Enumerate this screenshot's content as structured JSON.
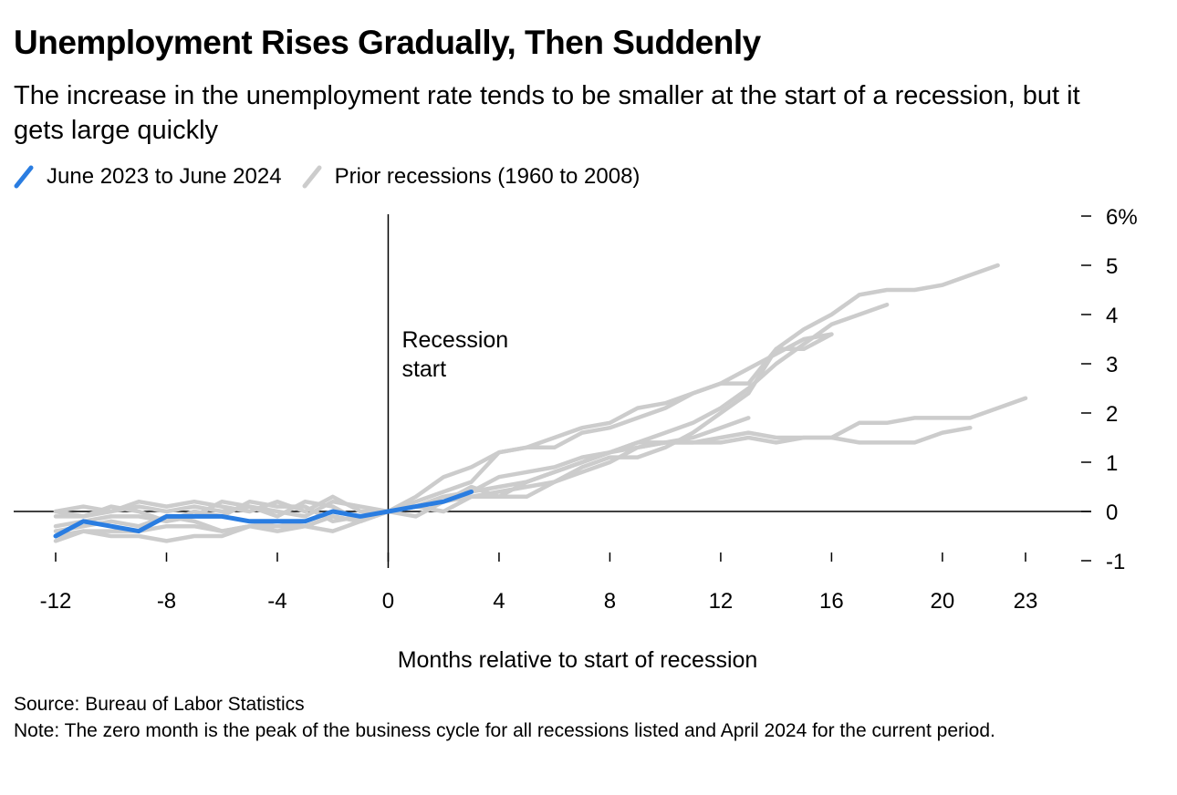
{
  "title": "Unemployment Rises Gradually, Then Suddenly",
  "subtitle": "The increase in the unemployment rate tends to be smaller at the start of a recession, but it gets large quickly",
  "source": "Source: Bureau of Labor Statistics",
  "note": "Note: The zero month is the peak of the business cycle for all recessions listed and April 2024 for the current period.",
  "colors": {
    "current": "#2a7de1",
    "prior": "#cccccc",
    "axis": "#000000"
  },
  "chart_data": {
    "type": "line",
    "title": "Unemployment Rises Gradually, Then Suddenly",
    "xlabel": "Months relative to start of recession",
    "ylabel": "",
    "xlim": [
      -12,
      23
    ],
    "ylim": [
      -1,
      6
    ],
    "x_ticks": [
      -12,
      -8,
      -4,
      0,
      4,
      8,
      12,
      16,
      20,
      23
    ],
    "x_tick_labels": [
      "-12",
      "-8",
      "-4",
      "0",
      "4",
      "8",
      "12",
      "16",
      "20",
      "23"
    ],
    "y_ticks": [
      6,
      5,
      4,
      3,
      2,
      1,
      0,
      -1
    ],
    "y_tick_labels": [
      "6%",
      "5",
      "4",
      "3",
      "2",
      "1",
      "0",
      "-1"
    ],
    "grid": false,
    "legend_position": "top-left",
    "legend": [
      {
        "label": "June 2023 to June 2024",
        "color": "#2a7de1"
      },
      {
        "label": "Prior recessions (1960 to 2008)",
        "color": "#cccccc"
      }
    ],
    "annotations": [
      {
        "text_lines": [
          "Recession",
          "start"
        ],
        "x": 0,
        "y": 3.3
      }
    ],
    "series": [
      {
        "name": "Prior recessions (1960 to 2008)",
        "color": "#cccccc",
        "x": [
          -12,
          -11,
          -10,
          -9,
          -8,
          -7,
          -6,
          -5,
          -4,
          -3,
          -2,
          -1,
          0,
          1,
          2,
          3,
          4,
          5,
          6,
          7,
          8,
          9,
          10,
          11,
          12,
          13,
          14,
          15,
          16,
          17,
          18,
          19,
          20,
          21,
          22
        ],
        "y": [
          -0.1,
          -0.1,
          0.0,
          0.1,
          0.0,
          0.1,
          0.0,
          0.1,
          0.0,
          -0.1,
          0.2,
          0.1,
          0.0,
          0.3,
          0.7,
          0.9,
          1.2,
          1.3,
          1.5,
          1.7,
          1.8,
          2.1,
          2.2,
          2.4,
          2.6,
          2.6,
          3.3,
          3.7,
          4.0,
          4.4,
          4.5,
          4.5,
          4.6,
          4.8,
          5.0
        ]
      },
      {
        "name": "Prior recessions (1960 to 2008)",
        "color": "#cccccc",
        "x": [
          -12,
          -11,
          -10,
          -9,
          -8,
          -7,
          -6,
          -5,
          -4,
          -3,
          -2,
          -1,
          0,
          1,
          2,
          3,
          4,
          5,
          6,
          7,
          8,
          9,
          10,
          11,
          12,
          13,
          14,
          15,
          16,
          17,
          18
        ],
        "y": [
          -0.3,
          -0.2,
          -0.1,
          -0.1,
          -0.2,
          0.0,
          -0.1,
          0.2,
          0.1,
          0.1,
          -0.2,
          -0.1,
          0.0,
          0.1,
          0.3,
          0.4,
          0.7,
          0.8,
          0.9,
          1.1,
          1.2,
          1.4,
          1.6,
          1.8,
          2.1,
          2.5,
          3.0,
          3.4,
          3.8,
          4.0,
          4.2
        ]
      },
      {
        "name": "Prior recessions (1960 to 2008)",
        "color": "#cccccc",
        "x": [
          -12,
          -11,
          -10,
          -9,
          -8,
          -7,
          -6,
          -5,
          -4,
          -3,
          -2,
          -1,
          0,
          1,
          2,
          3,
          4,
          5,
          6,
          7,
          8,
          9,
          10,
          11,
          12,
          13,
          14,
          15,
          16
        ],
        "y": [
          0.0,
          0.1,
          0.0,
          0.2,
          0.1,
          0.2,
          0.1,
          0.0,
          0.2,
          0.0,
          0.3,
          0.0,
          0.0,
          0.2,
          0.4,
          0.6,
          1.2,
          1.3,
          1.3,
          1.6,
          1.7,
          1.9,
          2.1,
          2.4,
          2.6,
          2.9,
          3.2,
          3.5,
          3.6
        ]
      },
      {
        "name": "Prior recessions (1960 to 2008)",
        "color": "#cccccc",
        "x": [
          -12,
          -11,
          -10,
          -9,
          -8,
          -7,
          -6,
          -5,
          -4,
          -3,
          -2,
          -1,
          0,
          1,
          2,
          3,
          4,
          5,
          6,
          7,
          8,
          9,
          10,
          11,
          12,
          13,
          14,
          15,
          16
        ],
        "y": [
          0.0,
          -0.1,
          0.1,
          0.0,
          -0.2,
          -0.1,
          0.2,
          0.1,
          -0.1,
          0.2,
          0.1,
          -0.2,
          0.0,
          0.1,
          0.2,
          0.5,
          0.3,
          0.3,
          0.6,
          0.9,
          1.1,
          1.1,
          1.3,
          1.6,
          2.0,
          2.4,
          3.3,
          3.3,
          3.6
        ]
      },
      {
        "name": "Prior recessions (1960 to 2008)",
        "color": "#cccccc",
        "x": [
          -12,
          -11,
          -10,
          -9,
          -8,
          -7,
          -6,
          -5,
          -4,
          -3,
          -2,
          -1,
          0,
          1,
          2,
          3,
          4,
          5,
          6,
          7,
          8,
          9,
          10,
          11,
          12,
          13,
          14,
          15,
          16,
          17,
          18,
          19,
          20,
          21,
          22,
          23
        ],
        "y": [
          -0.4,
          -0.3,
          -0.2,
          -0.3,
          -0.1,
          -0.2,
          -0.4,
          -0.3,
          -0.2,
          -0.3,
          -0.1,
          -0.2,
          0.0,
          0.1,
          0.3,
          0.4,
          0.5,
          0.6,
          0.8,
          1.0,
          1.2,
          1.3,
          1.4,
          1.4,
          1.5,
          1.6,
          1.5,
          1.5,
          1.5,
          1.8,
          1.8,
          1.9,
          1.9,
          1.9,
          2.1,
          2.3
        ]
      },
      {
        "name": "Prior recessions (1960 to 2008)",
        "color": "#cccccc",
        "x": [
          -12,
          -11,
          -10,
          -9,
          -8,
          -7,
          -6,
          -5,
          -4,
          -3,
          -2,
          -1,
          0,
          1,
          2,
          3,
          4,
          5,
          6,
          7,
          8,
          9,
          10,
          11,
          12,
          13,
          14,
          15,
          16,
          17,
          18,
          19,
          20,
          21
        ],
        "y": [
          -0.5,
          -0.4,
          -0.5,
          -0.5,
          -0.6,
          -0.5,
          -0.5,
          -0.3,
          -0.3,
          -0.3,
          -0.4,
          -0.2,
          0.0,
          -0.1,
          0.2,
          0.3,
          0.3,
          0.6,
          0.8,
          1.0,
          1.2,
          1.4,
          1.4,
          1.4,
          1.4,
          1.5,
          1.4,
          1.5,
          1.5,
          1.4,
          1.4,
          1.4,
          1.6,
          1.7
        ]
      },
      {
        "name": "Prior recessions (1960 to 2008)",
        "color": "#cccccc",
        "x": [
          -12,
          -11,
          -10,
          -9,
          -8,
          -7,
          -6,
          -5,
          -4,
          -3,
          -2,
          -1,
          0,
          1,
          2,
          3,
          4,
          5,
          6,
          7,
          8,
          9,
          10,
          11,
          12,
          13
        ],
        "y": [
          -0.6,
          -0.4,
          -0.4,
          -0.4,
          -0.3,
          -0.3,
          -0.4,
          -0.3,
          -0.4,
          -0.3,
          -0.1,
          -0.2,
          0.0,
          0.1,
          0.0,
          0.3,
          0.4,
          0.5,
          0.6,
          0.8,
          1.0,
          1.3,
          1.4,
          1.5,
          1.7,
          1.9
        ]
      },
      {
        "name": "June 2023 to June 2024",
        "color": "#2a7de1",
        "x": [
          -12,
          -11,
          -10,
          -9,
          -8,
          -7,
          -6,
          -5,
          -4,
          -3,
          -2,
          -1,
          0,
          1,
          2,
          3
        ],
        "y": [
          -0.5,
          -0.2,
          -0.3,
          -0.4,
          -0.1,
          -0.1,
          -0.1,
          -0.2,
          -0.2,
          -0.2,
          0.0,
          -0.1,
          0.0,
          0.1,
          0.2,
          0.4
        ]
      }
    ]
  }
}
